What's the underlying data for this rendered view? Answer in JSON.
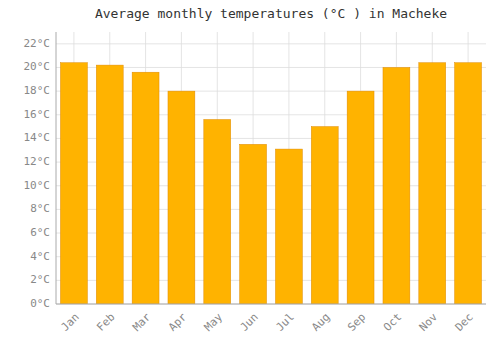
{
  "chart_data": {
    "type": "bar",
    "title": "Average monthly temperatures (°C ) in Macheke",
    "categories": [
      "Jan",
      "Feb",
      "Mar",
      "Apr",
      "May",
      "Jun",
      "Jul",
      "Aug",
      "Sep",
      "Oct",
      "Nov",
      "Dec"
    ],
    "values": [
      20.4,
      20.2,
      19.6,
      18.0,
      15.6,
      13.5,
      13.1,
      15.0,
      18.0,
      20.0,
      20.4,
      20.4
    ],
    "color": "#FFB300",
    "ylim": [
      0,
      23
    ],
    "yticks": [
      {
        "value": 0,
        "label": "0°C"
      },
      {
        "value": 2,
        "label": "2°C"
      },
      {
        "value": 4,
        "label": "4°C"
      },
      {
        "value": 6,
        "label": "6°C"
      },
      {
        "value": 8,
        "label": "8°C"
      },
      {
        "value": 10,
        "label": "10°C"
      },
      {
        "value": 12,
        "label": "12°C"
      },
      {
        "value": 14,
        "label": "14°C"
      },
      {
        "value": 16,
        "label": "16°C"
      },
      {
        "value": 18,
        "label": "18°C"
      },
      {
        "value": 20,
        "label": "20°C"
      },
      {
        "value": 22,
        "label": "22°C"
      }
    ],
    "grid": true
  }
}
